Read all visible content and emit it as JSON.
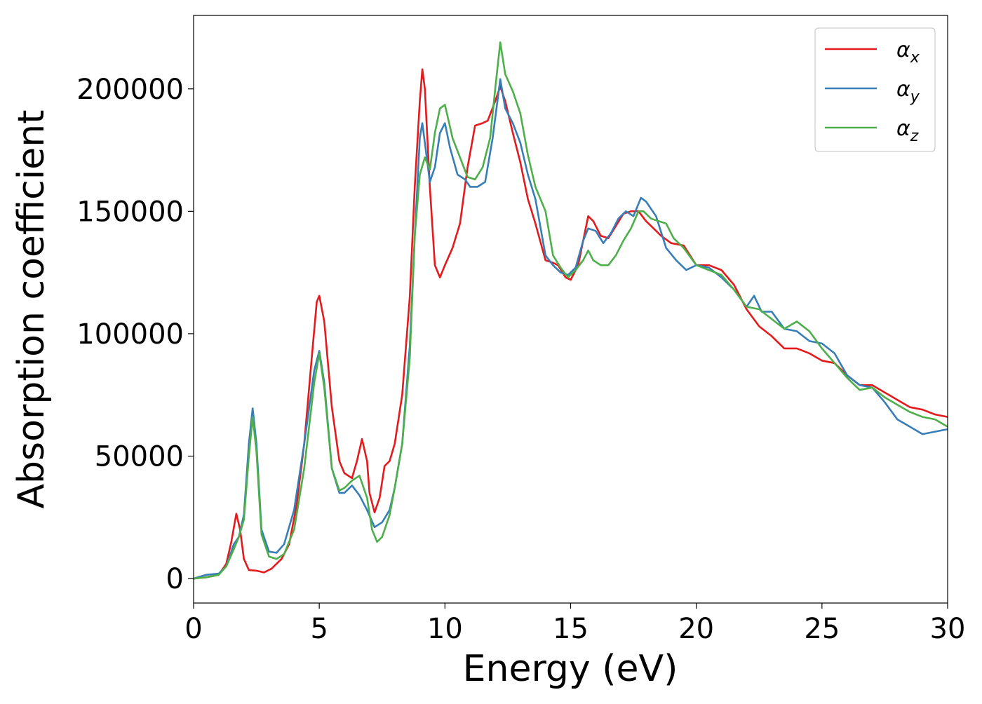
{
  "chart_data": {
    "type": "line",
    "title": "",
    "xlabel": "Energy (eV)",
    "ylabel": "Absorption coefficient",
    "xlim": [
      0,
      30
    ],
    "ylim": [
      -10000,
      230000
    ],
    "xticks": [
      0,
      5,
      10,
      15,
      20,
      25,
      30
    ],
    "yticks": [
      0,
      50000,
      100000,
      150000,
      200000
    ],
    "grid": false,
    "legend_position": "top-right",
    "series": [
      {
        "name": "α_x",
        "legend_base": "α",
        "legend_sub": "x",
        "color": "#e41a1c",
        "points": [
          [
            0,
            0
          ],
          [
            0.5,
            500
          ],
          [
            1.0,
            1500
          ],
          [
            1.3,
            6000
          ],
          [
            1.5,
            15000
          ],
          [
            1.7,
            26500
          ],
          [
            1.85,
            20000
          ],
          [
            2.0,
            8000
          ],
          [
            2.2,
            3500
          ],
          [
            2.5,
            3200
          ],
          [
            2.8,
            2500
          ],
          [
            3.1,
            4000
          ],
          [
            3.5,
            8000
          ],
          [
            3.8,
            14000
          ],
          [
            4.1,
            30000
          ],
          [
            4.4,
            55000
          ],
          [
            4.7,
            90000
          ],
          [
            4.9,
            113000
          ],
          [
            5.0,
            115500
          ],
          [
            5.2,
            105000
          ],
          [
            5.5,
            70000
          ],
          [
            5.8,
            48000
          ],
          [
            6.0,
            43000
          ],
          [
            6.3,
            41000
          ],
          [
            6.5,
            48000
          ],
          [
            6.7,
            57000
          ],
          [
            6.9,
            48000
          ],
          [
            7.0,
            35000
          ],
          [
            7.2,
            27000
          ],
          [
            7.4,
            33000
          ],
          [
            7.6,
            46000
          ],
          [
            7.8,
            48000
          ],
          [
            8.0,
            55000
          ],
          [
            8.3,
            75000
          ],
          [
            8.6,
            115000
          ],
          [
            8.8,
            160000
          ],
          [
            9.0,
            195000
          ],
          [
            9.1,
            208000
          ],
          [
            9.2,
            200000
          ],
          [
            9.4,
            160000
          ],
          [
            9.6,
            128000
          ],
          [
            9.8,
            123000
          ],
          [
            10.0,
            128000
          ],
          [
            10.3,
            135000
          ],
          [
            10.6,
            145000
          ],
          [
            10.9,
            168000
          ],
          [
            11.2,
            185000
          ],
          [
            11.5,
            186000
          ],
          [
            11.7,
            187000
          ],
          [
            12.0,
            195000
          ],
          [
            12.2,
            201000
          ],
          [
            12.4,
            195000
          ],
          [
            12.7,
            182000
          ],
          [
            13.0,
            170000
          ],
          [
            13.3,
            155000
          ],
          [
            13.6,
            145000
          ],
          [
            14.0,
            130000
          ],
          [
            14.3,
            129000
          ],
          [
            14.5,
            128000
          ],
          [
            14.8,
            123000
          ],
          [
            15.0,
            122000
          ],
          [
            15.3,
            128000
          ],
          [
            15.5,
            138000
          ],
          [
            15.7,
            148000
          ],
          [
            15.9,
            146000
          ],
          [
            16.2,
            140000
          ],
          [
            16.5,
            139000
          ],
          [
            16.8,
            144000
          ],
          [
            17.1,
            149000
          ],
          [
            17.4,
            150000
          ],
          [
            17.7,
            150000
          ],
          [
            18.0,
            146000
          ],
          [
            18.3,
            143000
          ],
          [
            18.6,
            140000
          ],
          [
            19.0,
            137000
          ],
          [
            19.5,
            136000
          ],
          [
            20.0,
            128000
          ],
          [
            20.5,
            128000
          ],
          [
            21.0,
            126000
          ],
          [
            21.5,
            120000
          ],
          [
            22.0,
            110000
          ],
          [
            22.5,
            103000
          ],
          [
            23.0,
            99000
          ],
          [
            23.5,
            94000
          ],
          [
            24.0,
            94000
          ],
          [
            24.5,
            92000
          ],
          [
            25.0,
            89000
          ],
          [
            25.5,
            88000
          ],
          [
            26.0,
            83000
          ],
          [
            26.5,
            79000
          ],
          [
            27.0,
            79000
          ],
          [
            27.5,
            76000
          ],
          [
            28.0,
            73000
          ],
          [
            28.5,
            70000
          ],
          [
            29.0,
            69000
          ],
          [
            29.5,
            67000
          ],
          [
            30.0,
            66000
          ]
        ]
      },
      {
        "name": "α_y",
        "legend_base": "α",
        "legend_sub": "y",
        "color": "#377eb8",
        "points": [
          [
            0,
            0
          ],
          [
            0.5,
            1500
          ],
          [
            1.0,
            2000
          ],
          [
            1.3,
            5000
          ],
          [
            1.6,
            14000
          ],
          [
            1.8,
            17000
          ],
          [
            2.0,
            26000
          ],
          [
            2.2,
            55000
          ],
          [
            2.35,
            69500
          ],
          [
            2.5,
            55000
          ],
          [
            2.7,
            20000
          ],
          [
            3.0,
            11000
          ],
          [
            3.3,
            10500
          ],
          [
            3.6,
            14000
          ],
          [
            4.0,
            28000
          ],
          [
            4.4,
            55000
          ],
          [
            4.8,
            85000
          ],
          [
            5.0,
            93000
          ],
          [
            5.2,
            80000
          ],
          [
            5.5,
            45000
          ],
          [
            5.8,
            35000
          ],
          [
            6.0,
            35000
          ],
          [
            6.3,
            38000
          ],
          [
            6.6,
            34000
          ],
          [
            6.9,
            28000
          ],
          [
            7.2,
            21000
          ],
          [
            7.5,
            23000
          ],
          [
            7.8,
            28000
          ],
          [
            8.0,
            37000
          ],
          [
            8.3,
            55000
          ],
          [
            8.6,
            95000
          ],
          [
            8.8,
            140000
          ],
          [
            9.0,
            180000
          ],
          [
            9.1,
            186000
          ],
          [
            9.2,
            178000
          ],
          [
            9.4,
            162000
          ],
          [
            9.6,
            168000
          ],
          [
            9.8,
            182000
          ],
          [
            10.0,
            186000
          ],
          [
            10.2,
            176000
          ],
          [
            10.5,
            165000
          ],
          [
            10.8,
            163000
          ],
          [
            11.0,
            160000
          ],
          [
            11.3,
            160000
          ],
          [
            11.6,
            162000
          ],
          [
            11.9,
            180000
          ],
          [
            12.2,
            204000
          ],
          [
            12.4,
            192000
          ],
          [
            12.7,
            186000
          ],
          [
            13.0,
            178000
          ],
          [
            13.3,
            165000
          ],
          [
            13.6,
            155000
          ],
          [
            14.0,
            132000
          ],
          [
            14.3,
            128000
          ],
          [
            14.6,
            125000
          ],
          [
            14.9,
            124000
          ],
          [
            15.2,
            127000
          ],
          [
            15.5,
            138000
          ],
          [
            15.7,
            143000
          ],
          [
            16.0,
            142000
          ],
          [
            16.3,
            137000
          ],
          [
            16.6,
            141000
          ],
          [
            16.9,
            147000
          ],
          [
            17.2,
            150000
          ],
          [
            17.5,
            148000
          ],
          [
            17.8,
            155500
          ],
          [
            18.0,
            154000
          ],
          [
            18.4,
            148000
          ],
          [
            18.8,
            135000
          ],
          [
            19.2,
            130000
          ],
          [
            19.6,
            126000
          ],
          [
            20.0,
            128000
          ],
          [
            20.5,
            127000
          ],
          [
            21.0,
            123000
          ],
          [
            21.5,
            118000
          ],
          [
            22.0,
            111000
          ],
          [
            22.3,
            115500
          ],
          [
            22.6,
            109000
          ],
          [
            23.0,
            109000
          ],
          [
            23.5,
            102000
          ],
          [
            24.0,
            101000
          ],
          [
            24.5,
            97000
          ],
          [
            25.0,
            96000
          ],
          [
            25.5,
            92000
          ],
          [
            26.0,
            83000
          ],
          [
            26.5,
            79000
          ],
          [
            27.0,
            78000
          ],
          [
            27.5,
            72000
          ],
          [
            28.0,
            65000
          ],
          [
            28.5,
            62000
          ],
          [
            29.0,
            59000
          ],
          [
            29.5,
            60000
          ],
          [
            30.0,
            61000
          ]
        ]
      },
      {
        "name": "α_z",
        "legend_base": "α",
        "legend_sub": "z",
        "color": "#4daf4a",
        "points": [
          [
            0,
            0
          ],
          [
            0.5,
            500
          ],
          [
            1.0,
            1500
          ],
          [
            1.3,
            5000
          ],
          [
            1.6,
            12000
          ],
          [
            1.8,
            17000
          ],
          [
            2.0,
            24000
          ],
          [
            2.2,
            50000
          ],
          [
            2.35,
            66000
          ],
          [
            2.5,
            52000
          ],
          [
            2.7,
            18000
          ],
          [
            3.0,
            9000
          ],
          [
            3.3,
            8000
          ],
          [
            3.6,
            10000
          ],
          [
            4.0,
            20000
          ],
          [
            4.4,
            45000
          ],
          [
            4.8,
            80000
          ],
          [
            5.0,
            92000
          ],
          [
            5.2,
            78000
          ],
          [
            5.5,
            45000
          ],
          [
            5.8,
            36000
          ],
          [
            6.0,
            37000
          ],
          [
            6.3,
            40000
          ],
          [
            6.6,
            42000
          ],
          [
            6.9,
            33000
          ],
          [
            7.1,
            20000
          ],
          [
            7.3,
            15000
          ],
          [
            7.5,
            17000
          ],
          [
            7.8,
            26000
          ],
          [
            8.0,
            37000
          ],
          [
            8.3,
            55000
          ],
          [
            8.6,
            90000
          ],
          [
            8.8,
            140000
          ],
          [
            9.0,
            165000
          ],
          [
            9.2,
            172000
          ],
          [
            9.4,
            167000
          ],
          [
            9.6,
            182000
          ],
          [
            9.8,
            192000
          ],
          [
            10.0,
            193500
          ],
          [
            10.3,
            180000
          ],
          [
            10.6,
            172000
          ],
          [
            10.9,
            164000
          ],
          [
            11.2,
            163000
          ],
          [
            11.5,
            168000
          ],
          [
            11.8,
            180000
          ],
          [
            12.0,
            200000
          ],
          [
            12.2,
            219000
          ],
          [
            12.4,
            206000
          ],
          [
            12.7,
            199000
          ],
          [
            13.0,
            190000
          ],
          [
            13.3,
            173000
          ],
          [
            13.6,
            160000
          ],
          [
            14.0,
            150000
          ],
          [
            14.3,
            132000
          ],
          [
            14.6,
            127000
          ],
          [
            14.9,
            123000
          ],
          [
            15.2,
            126000
          ],
          [
            15.5,
            130000
          ],
          [
            15.7,
            134000
          ],
          [
            15.9,
            130000
          ],
          [
            16.2,
            128000
          ],
          [
            16.5,
            128000
          ],
          [
            16.8,
            132000
          ],
          [
            17.1,
            138000
          ],
          [
            17.4,
            143000
          ],
          [
            17.7,
            150000
          ],
          [
            17.9,
            150000
          ],
          [
            18.2,
            147000
          ],
          [
            18.5,
            146000
          ],
          [
            18.8,
            145000
          ],
          [
            19.1,
            139000
          ],
          [
            19.5,
            135000
          ],
          [
            20.0,
            128000
          ],
          [
            20.5,
            126000
          ],
          [
            21.0,
            124000
          ],
          [
            21.5,
            118000
          ],
          [
            22.0,
            111000
          ],
          [
            22.5,
            110000
          ],
          [
            23.0,
            106000
          ],
          [
            23.5,
            102000
          ],
          [
            24.0,
            105000
          ],
          [
            24.5,
            101000
          ],
          [
            25.0,
            94000
          ],
          [
            25.5,
            88000
          ],
          [
            26.0,
            82000
          ],
          [
            26.5,
            77000
          ],
          [
            27.0,
            78000
          ],
          [
            27.5,
            74000
          ],
          [
            28.0,
            71000
          ],
          [
            28.5,
            68000
          ],
          [
            29.0,
            66000
          ],
          [
            29.5,
            65000
          ],
          [
            30.0,
            62000
          ]
        ]
      }
    ]
  }
}
